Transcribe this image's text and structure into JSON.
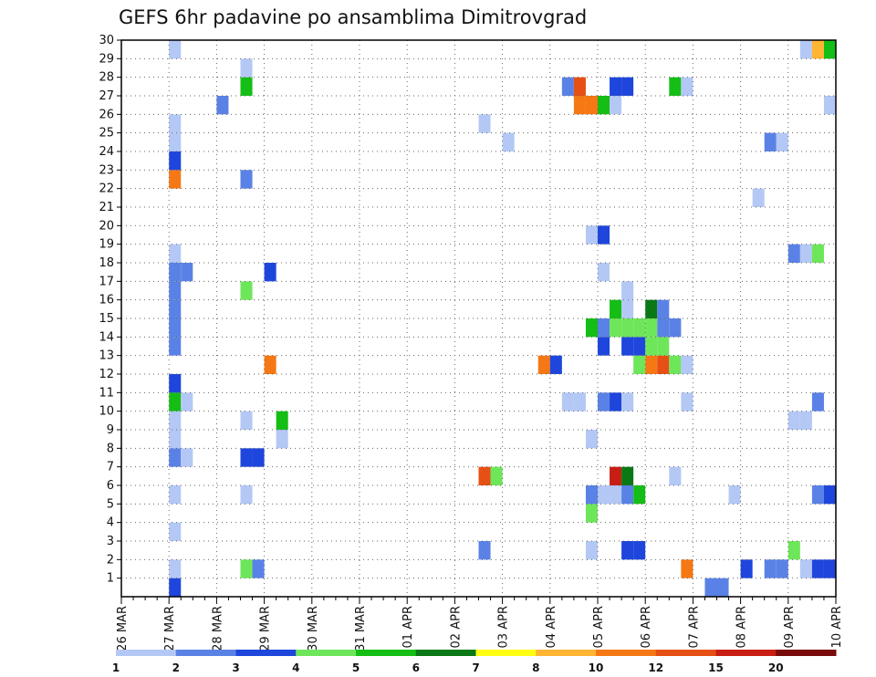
{
  "chart_data": {
    "type": "heatmap",
    "title": "GEFS 6hr padavine po ansamblima Dimitrovgrad",
    "x_tick_labels": [
      "26 MAR",
      "27 MAR",
      "28 MAR",
      "29 MAR",
      "30 MAR",
      "31 MAR",
      "01 APR",
      "02 APR",
      "03 APR",
      "04 APR",
      "05 APR",
      "06 APR",
      "07 APR",
      "08 APR",
      "09 APR",
      "10 APR"
    ],
    "y_tick_labels": [
      "1",
      "2",
      "3",
      "4",
      "5",
      "6",
      "7",
      "8",
      "9",
      "10",
      "11",
      "12",
      "13",
      "14",
      "15",
      "16",
      "17",
      "18",
      "19",
      "20",
      "21",
      "22",
      "23",
      "24",
      "25",
      "26",
      "27",
      "28",
      "29",
      "30"
    ],
    "x_unit": "6-hour steps after 26 MAR 00Z",
    "xlim": [
      0,
      60
    ],
    "ylim": [
      0,
      30
    ],
    "grid": true,
    "legend_position": "bottom",
    "levels": [
      "1",
      "2",
      "3",
      "4",
      "5",
      "6",
      "7",
      "8",
      "10",
      "12",
      "15",
      "20"
    ],
    "level_colors": [
      "#b4c8f5",
      "#5a82e6",
      "#1e46dc",
      "#6ee65a",
      "#14be14",
      "#0a7814",
      "#ffff14",
      "#ffb432",
      "#f57814",
      "#e65014",
      "#c81e14",
      "#780a0a"
    ],
    "cells": [
      [
        4,
        0,
        2
      ],
      [
        4,
        1,
        0
      ],
      [
        4,
        3,
        0
      ],
      [
        4,
        5,
        0
      ],
      [
        4,
        7,
        1
      ],
      [
        4,
        8,
        0
      ],
      [
        4,
        9,
        0
      ],
      [
        4,
        10,
        4
      ],
      [
        4,
        11,
        2
      ],
      [
        4,
        13,
        1
      ],
      [
        4,
        14,
        1
      ],
      [
        4,
        15,
        1
      ],
      [
        4,
        16,
        1
      ],
      [
        4,
        17,
        1
      ],
      [
        4,
        18,
        0
      ],
      [
        4,
        22,
        8
      ],
      [
        4,
        23,
        2
      ],
      [
        4,
        24,
        0
      ],
      [
        4,
        25,
        0
      ],
      [
        4,
        29,
        0
      ],
      [
        5,
        7,
        0
      ],
      [
        5,
        10,
        0
      ],
      [
        5,
        17,
        1
      ],
      [
        8,
        26,
        1
      ],
      [
        10,
        1,
        3
      ],
      [
        10,
        5,
        0
      ],
      [
        10,
        7,
        2
      ],
      [
        10,
        9,
        0
      ],
      [
        10,
        16,
        3
      ],
      [
        10,
        22,
        1
      ],
      [
        10,
        27,
        4
      ],
      [
        10,
        28,
        0
      ],
      [
        11,
        1,
        1
      ],
      [
        11,
        7,
        2
      ],
      [
        12,
        12,
        8
      ],
      [
        12,
        17,
        2
      ],
      [
        13,
        8,
        0
      ],
      [
        13,
        9,
        4
      ],
      [
        30,
        2,
        1
      ],
      [
        30,
        6,
        9
      ],
      [
        30,
        25,
        0
      ],
      [
        31,
        6,
        3
      ],
      [
        32,
        24,
        0
      ],
      [
        35,
        12,
        8
      ],
      [
        36,
        12,
        2
      ],
      [
        37,
        10,
        0
      ],
      [
        37,
        27,
        1
      ],
      [
        38,
        10,
        0
      ],
      [
        38,
        26,
        8
      ],
      [
        38,
        27,
        9
      ],
      [
        39,
        2,
        0
      ],
      [
        39,
        4,
        3
      ],
      [
        39,
        5,
        1
      ],
      [
        39,
        8,
        0
      ],
      [
        39,
        14,
        4
      ],
      [
        39,
        19,
        0
      ],
      [
        39,
        26,
        8
      ],
      [
        40,
        5,
        0
      ],
      [
        40,
        10,
        1
      ],
      [
        40,
        13,
        2
      ],
      [
        40,
        14,
        1
      ],
      [
        40,
        17,
        0
      ],
      [
        40,
        19,
        2
      ],
      [
        40,
        26,
        4
      ],
      [
        41,
        5,
        0
      ],
      [
        41,
        6,
        10
      ],
      [
        41,
        10,
        2
      ],
      [
        41,
        14,
        3
      ],
      [
        41,
        15,
        4
      ],
      [
        41,
        26,
        0
      ],
      [
        41,
        27,
        2
      ],
      [
        42,
        2,
        2
      ],
      [
        42,
        5,
        1
      ],
      [
        42,
        6,
        5
      ],
      [
        42,
        10,
        0
      ],
      [
        42,
        13,
        2
      ],
      [
        42,
        14,
        3
      ],
      [
        42,
        15,
        0
      ],
      [
        42,
        16,
        0
      ],
      [
        42,
        27,
        2
      ],
      [
        43,
        2,
        2
      ],
      [
        43,
        5,
        4
      ],
      [
        43,
        12,
        3
      ],
      [
        43,
        13,
        2
      ],
      [
        43,
        14,
        3
      ],
      [
        44,
        12,
        8
      ],
      [
        44,
        13,
        3
      ],
      [
        44,
        14,
        3
      ],
      [
        44,
        15,
        5
      ],
      [
        45,
        12,
        9
      ],
      [
        45,
        13,
        3
      ],
      [
        45,
        14,
        1
      ],
      [
        45,
        15,
        1
      ],
      [
        46,
        6,
        0
      ],
      [
        46,
        12,
        3
      ],
      [
        46,
        14,
        1
      ],
      [
        46,
        27,
        4
      ],
      [
        47,
        1,
        8
      ],
      [
        47,
        10,
        0
      ],
      [
        47,
        12,
        0
      ],
      [
        47,
        27,
        0
      ],
      [
        49,
        0,
        1
      ],
      [
        50,
        0,
        1
      ],
      [
        51,
        5,
        0
      ],
      [
        52,
        1,
        2
      ],
      [
        53,
        21,
        0
      ],
      [
        54,
        1,
        1
      ],
      [
        54,
        24,
        1
      ],
      [
        55,
        1,
        1
      ],
      [
        55,
        24,
        0
      ],
      [
        56,
        2,
        3
      ],
      [
        56,
        9,
        0
      ],
      [
        56,
        18,
        1
      ],
      [
        57,
        1,
        0
      ],
      [
        57,
        9,
        0
      ],
      [
        57,
        18,
        0
      ],
      [
        57,
        29,
        0
      ],
      [
        58,
        1,
        2
      ],
      [
        58,
        5,
        1
      ],
      [
        58,
        10,
        1
      ],
      [
        58,
        18,
        3
      ],
      [
        58,
        29,
        7
      ],
      [
        59,
        1,
        2
      ],
      [
        59,
        5,
        2
      ],
      [
        59,
        26,
        0
      ],
      [
        59,
        29,
        4
      ]
    ]
  }
}
